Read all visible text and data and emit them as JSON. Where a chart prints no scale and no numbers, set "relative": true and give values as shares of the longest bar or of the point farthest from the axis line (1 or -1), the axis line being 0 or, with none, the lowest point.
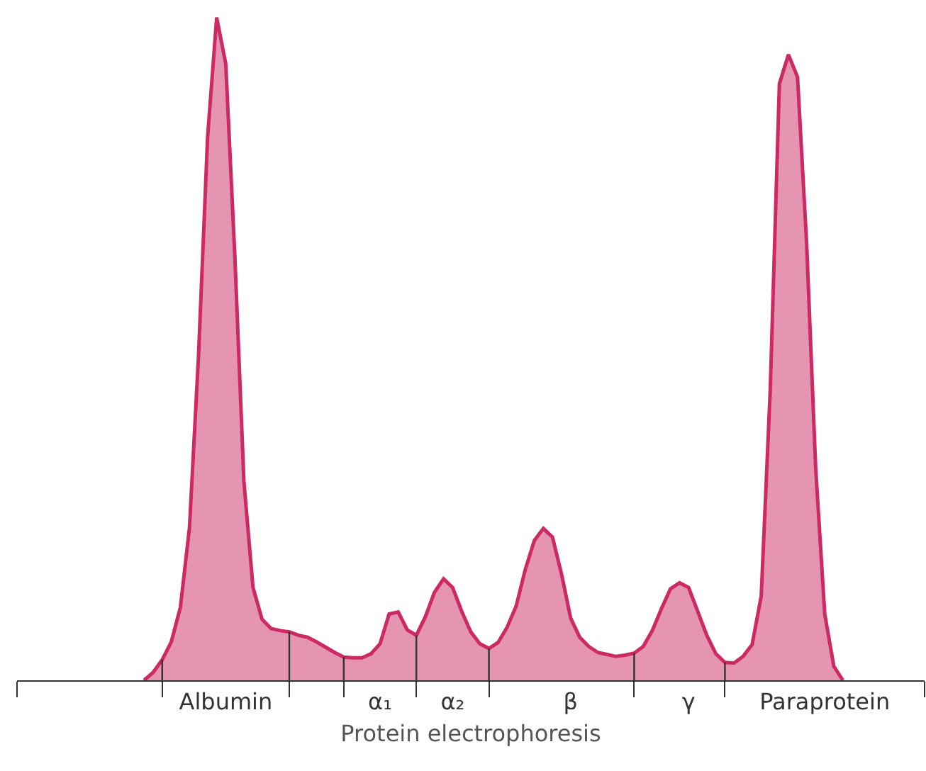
{
  "chart_data": {
    "type": "area",
    "relative": true,
    "xlabel": "Protein electrophoresis",
    "categories": [
      null,
      null,
      null,
      null,
      null,
      null,
      null,
      null,
      null,
      null,
      null,
      null,
      null,
      null,
      null,
      null,
      null,
      null,
      null,
      null,
      null,
      null,
      null,
      "Albumin",
      null,
      null,
      null,
      null,
      null,
      null,
      null,
      null,
      null,
      null,
      null,
      null,
      null,
      null,
      null,
      null,
      "α₁",
      null,
      null,
      null,
      null,
      null,
      null,
      null,
      "α₂",
      null,
      null,
      null,
      null,
      null,
      null,
      null,
      null,
      null,
      null,
      null,
      null,
      "β",
      null,
      null,
      null,
      null,
      null,
      null,
      null,
      null,
      null,
      null,
      null,
      null,
      "γ",
      null,
      null,
      null,
      null,
      null,
      null,
      null,
      null,
      null,
      null,
      null,
      null,
      null,
      null,
      "Paraprotein",
      null,
      null,
      null,
      null,
      null,
      null,
      null,
      null,
      null,
      null,
      null
    ],
    "series": [
      {
        "color": "#cc2a64",
        "values": [
          null,
          null,
          null,
          null,
          null,
          null,
          null,
          null,
          null,
          null,
          null,
          null,
          null,
          null,
          0,
          0.012,
          0.031,
          0.058,
          0.11,
          0.23,
          0.49,
          0.82,
          1,
          0.93,
          0.64,
          0.3,
          0.14,
          0.092,
          0.078,
          0.075,
          0.073,
          0.068,
          0.065,
          0.058,
          0.05,
          0.042,
          0.035,
          0.034,
          0.034,
          0.04,
          0.055,
          0.1,
          0.103,
          0.076,
          0.068,
          0.096,
          0.133,
          0.153,
          0.14,
          0.104,
          0.073,
          0.055,
          0.048,
          0.057,
          0.08,
          0.112,
          0.167,
          0.211,
          0.229,
          0.216,
          0.16,
          0.094,
          0.065,
          0.051,
          0.042,
          0.039,
          0.036,
          0.038,
          0.041,
          0.051,
          0.075,
          0.108,
          0.138,
          0.147,
          0.14,
          0.104,
          0.068,
          0.04,
          0.027,
          0.026,
          0.036,
          0.054,
          0.127,
          0.44,
          0.9,
          0.944,
          0.91,
          0.66,
          0.32,
          0.1,
          0.021,
          0,
          null,
          null,
          null,
          null,
          null,
          null,
          null,
          null,
          null
        ]
      }
    ]
  }
}
